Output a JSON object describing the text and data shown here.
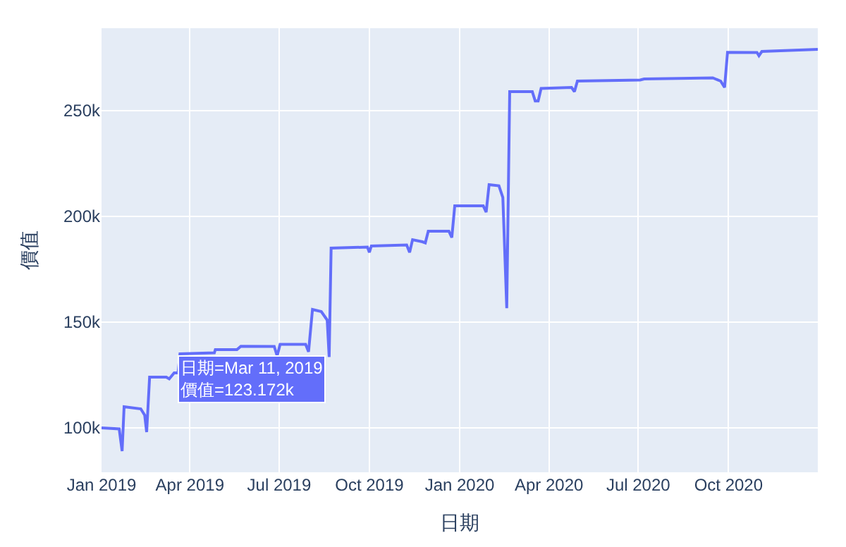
{
  "chart_data": {
    "type": "line",
    "xlabel": "日期",
    "ylabel": "價值",
    "x": [
      "2019-01-01",
      "2019-01-19",
      "2019-01-22",
      "2019-01-24",
      "2019-02-10",
      "2019-02-14",
      "2019-02-16",
      "2019-02-19",
      "2019-03-08",
      "2019-03-11",
      "2019-03-16",
      "2019-03-20",
      "2019-03-22",
      "2019-04-26",
      "2019-04-27",
      "2019-05-19",
      "2019-05-23",
      "2019-06-26",
      "2019-06-29",
      "2019-07-02",
      "2019-07-28",
      "2019-07-31",
      "2019-08-04",
      "2019-08-13",
      "2019-08-19",
      "2019-08-21",
      "2019-08-23",
      "2019-09-29",
      "2019-10-01",
      "2019-10-03",
      "2019-11-08",
      "2019-11-11",
      "2019-11-14",
      "2019-11-24",
      "2019-11-27",
      "2019-11-30",
      "2019-12-21",
      "2019-12-24",
      "2019-12-27",
      "2020-01-25",
      "2020-01-28",
      "2020-01-31",
      "2020-02-10",
      "2020-02-14",
      "2020-02-18",
      "2020-02-21",
      "2020-03-15",
      "2020-03-18",
      "2020-03-21",
      "2020-03-24",
      "2020-04-24",
      "2020-04-27",
      "2020-04-30",
      "2020-07-03",
      "2020-07-07",
      "2020-09-15",
      "2020-09-23",
      "2020-09-27",
      "2020-09-30",
      "2020-10-30",
      "2020-11-01",
      "2020-11-04",
      "2020-12-31"
    ],
    "series": [
      {
        "color": "#636efa",
        "values": [
          100000,
          99500,
          89000,
          110000,
          109000,
          106000,
          98000,
          124000,
          124000,
          123172,
          126000,
          126000,
          135000,
          135500,
          137000,
          137000,
          138600,
          138500,
          134000,
          139500,
          139500,
          136000,
          156000,
          155000,
          151000,
          133500,
          185000,
          185500,
          183000,
          186000,
          186500,
          183000,
          189000,
          188000,
          187500,
          193000,
          193000,
          190000,
          205000,
          205000,
          202000,
          215000,
          214500,
          209000,
          156600,
          259000,
          259000,
          254600,
          254600,
          260500,
          261000,
          259000,
          264000,
          264500,
          265000,
          265500,
          264000,
          261000,
          277600,
          277500,
          276000,
          278000,
          279000
        ]
      }
    ],
    "annotations": [
      {
        "text": "日期=Mar 11, 2019\n價值=123.172k",
        "x": "2019-03-11",
        "y": 123172
      }
    ],
    "xlim": [
      "2019-01-01",
      "2020-12-31"
    ],
    "xticks": [
      {
        "value": "2019-01-01",
        "label": "Jan 2019"
      },
      {
        "value": "2019-04-01",
        "label": "Apr 2019"
      },
      {
        "value": "2019-07-01",
        "label": "Jul 2019"
      },
      {
        "value": "2019-10-01",
        "label": "Oct 2019"
      },
      {
        "value": "2020-01-01",
        "label": "Jan 2020"
      },
      {
        "value": "2020-04-01",
        "label": "Apr 2020"
      },
      {
        "value": "2020-07-01",
        "label": "Jul 2020"
      },
      {
        "value": "2020-10-01",
        "label": "Oct 2020"
      }
    ],
    "ylim": [
      79000,
      289000
    ],
    "yticks": [
      {
        "value": 100000,
        "label": "100k"
      },
      {
        "value": 150000,
        "label": "150k"
      },
      {
        "value": 200000,
        "label": "200k"
      },
      {
        "value": 250000,
        "label": "250k"
      }
    ],
    "grid": true,
    "marker": "none",
    "line_style": "solid"
  }
}
